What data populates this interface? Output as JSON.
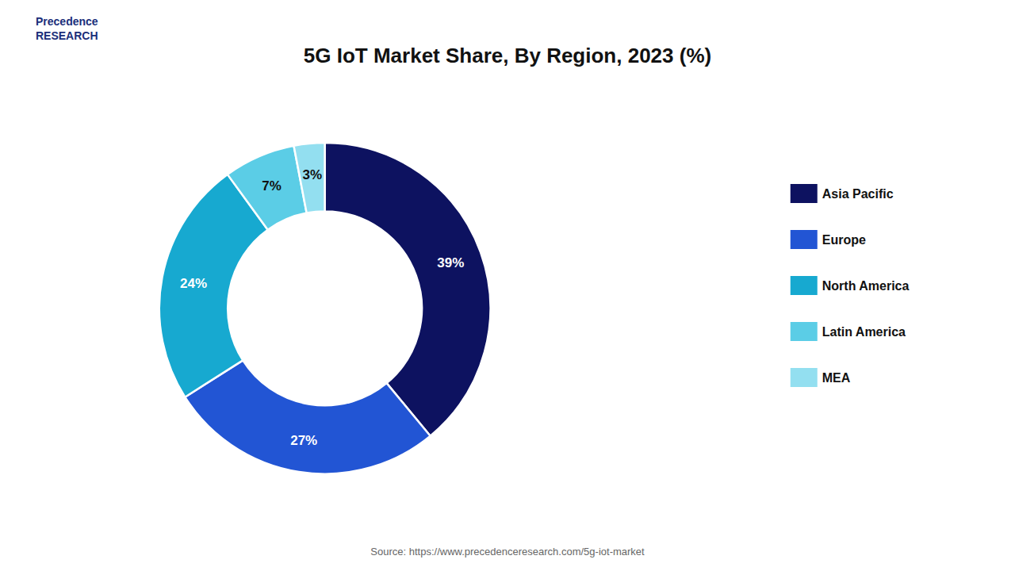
{
  "chart_data": {
    "type": "pie",
    "title": "5G IoT Market Share, By Region, 2023 (%)",
    "categories": [
      "Asia Pacific",
      "Europe",
      "North America",
      "Latin America",
      "MEA"
    ],
    "values": [
      39,
      27,
      24,
      7,
      3
    ],
    "value_labels": [
      "39%",
      "27%",
      "24%",
      "7%",
      "3%"
    ],
    "colors": [
      "#0d1260",
      "#2255d4",
      "#17a9d0",
      "#5bcde6",
      "#93dff0"
    ],
    "data_labels": true,
    "legend": "right",
    "annotations": [
      "Source: https://www.precedenceresearch.com/5g-iot-market",
      "Precedence\nRESEARCH"
    ]
  }
}
